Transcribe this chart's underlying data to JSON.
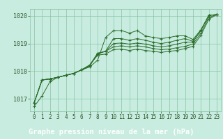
{
  "background_color": "#c8ece0",
  "plot_bg_color": "#c8ece0",
  "xlabel_bg_color": "#5a9e6e",
  "grid_color": "#88c4a4",
  "line_color": "#2d6e2d",
  "marker_color": "#2d6e2d",
  "xlabel": "Graphe pression niveau de la mer (hPa)",
  "xlabel_fontsize": 7.5,
  "xlabel_color": "#ffffff",
  "tick_color": "#2d5a2d",
  "tick_fontsize": 5.5,
  "ytick_fontsize": 6.0,
  "xlim": [
    -0.5,
    23.5
  ],
  "ylim": [
    1016.55,
    1020.25
  ],
  "yticks": [
    1017,
    1018,
    1019,
    1020
  ],
  "xticks": [
    0,
    1,
    2,
    3,
    4,
    5,
    6,
    7,
    8,
    9,
    10,
    11,
    12,
    13,
    14,
    15,
    16,
    17,
    18,
    19,
    20,
    21,
    22,
    23
  ],
  "series": [
    [
      1016.72,
      1017.1,
      1017.62,
      1017.78,
      1017.85,
      1017.92,
      1018.05,
      1018.15,
      1018.4,
      1019.22,
      1019.47,
      1019.47,
      1019.38,
      1019.47,
      1019.28,
      1019.22,
      1019.18,
      1019.22,
      1019.28,
      1019.28,
      1019.15,
      1019.5,
      1020.02,
      1020.05
    ],
    [
      1016.85,
      1017.68,
      1017.72,
      1017.78,
      1017.85,
      1017.92,
      1018.05,
      1018.18,
      1018.65,
      1018.72,
      1019.18,
      1019.18,
      1019.12,
      1019.18,
      1019.12,
      1019.05,
      1019.0,
      1019.05,
      1019.12,
      1019.18,
      1019.08,
      1019.48,
      1020.02,
      1020.05
    ],
    [
      1016.85,
      1017.68,
      1017.72,
      1017.78,
      1017.85,
      1017.92,
      1018.05,
      1018.22,
      1018.65,
      1018.72,
      1019.0,
      1019.02,
      1018.98,
      1019.02,
      1018.98,
      1018.92,
      1018.88,
      1018.92,
      1018.98,
      1019.05,
      1019.05,
      1019.48,
      1020.02,
      1020.05
    ],
    [
      1016.85,
      1017.68,
      1017.72,
      1017.78,
      1017.85,
      1017.92,
      1018.05,
      1018.22,
      1018.62,
      1018.72,
      1018.88,
      1018.92,
      1018.88,
      1018.92,
      1018.88,
      1018.82,
      1018.78,
      1018.8,
      1018.85,
      1018.9,
      1018.98,
      1019.38,
      1019.95,
      1020.05
    ],
    [
      1016.85,
      1017.68,
      1017.72,
      1017.78,
      1017.85,
      1017.92,
      1018.05,
      1018.22,
      1018.58,
      1018.62,
      1018.78,
      1018.8,
      1018.75,
      1018.8,
      1018.75,
      1018.72,
      1018.68,
      1018.72,
      1018.75,
      1018.82,
      1018.9,
      1019.3,
      1019.88,
      1020.05
    ]
  ]
}
